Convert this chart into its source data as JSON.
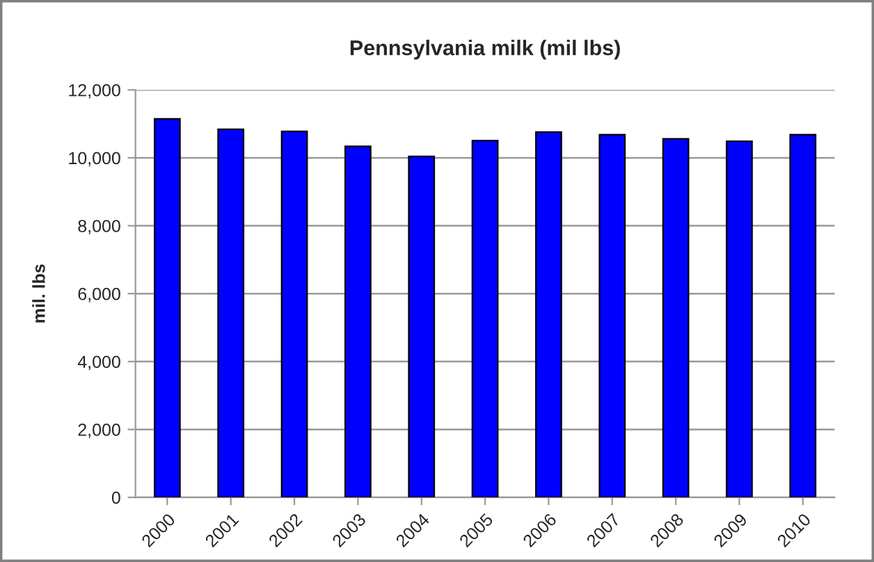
{
  "chart_data": {
    "type": "bar",
    "title": "Pennsylvania milk (mil lbs)",
    "ylabel": "mil. lbs",
    "categories": [
      "2000",
      "2001",
      "2002",
      "2003",
      "2004",
      "2005",
      "2006",
      "2007",
      "2008",
      "2009",
      "2010"
    ],
    "values": [
      11150,
      10840,
      10780,
      10340,
      10040,
      10510,
      10760,
      10680,
      10560,
      10490,
      10680
    ],
    "color": "#0000ff",
    "ylim": [
      0,
      12000
    ],
    "yticks": [
      {
        "value": 0,
        "label": "0"
      },
      {
        "value": 2000,
        "label": "2,000"
      },
      {
        "value": 4000,
        "label": "4,000"
      },
      {
        "value": 6000,
        "label": "6,000"
      },
      {
        "value": 8000,
        "label": "8,000"
      },
      {
        "value": 10000,
        "label": "10,000"
      },
      {
        "value": 12000,
        "label": "12,000"
      }
    ],
    "grid": "y",
    "legend": false
  }
}
